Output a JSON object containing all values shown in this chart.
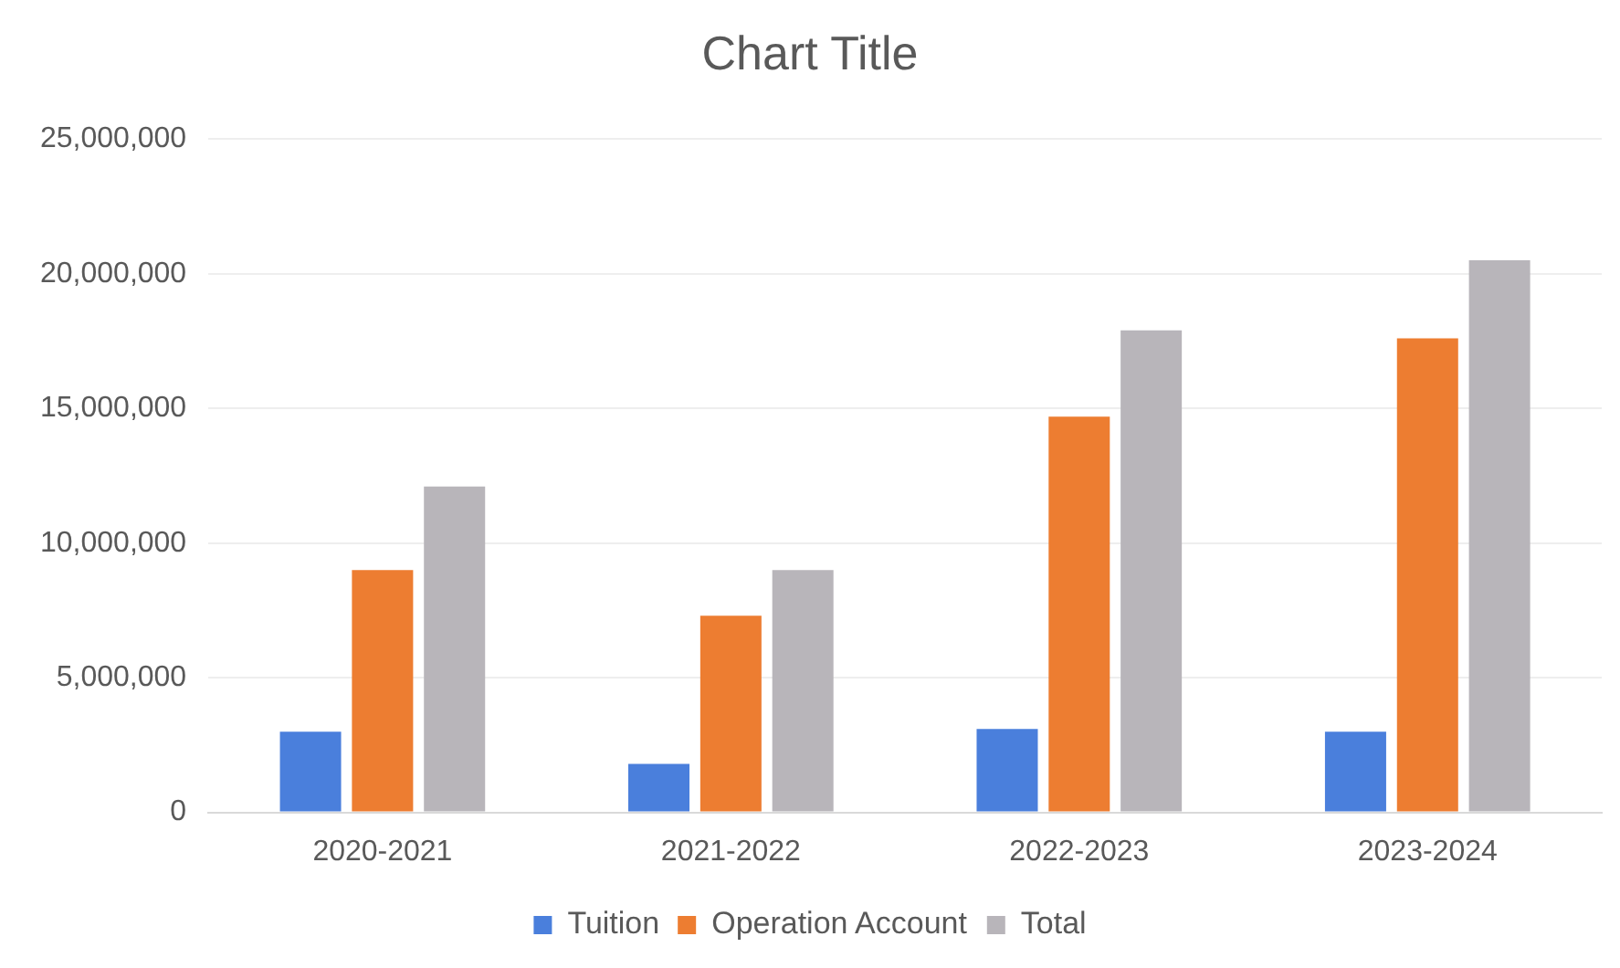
{
  "chart_data": {
    "type": "bar",
    "title": "Chart Title",
    "categories": [
      "2020-2021",
      "2021-2022",
      "2022-2023",
      "2023-2024"
    ],
    "series": [
      {
        "name": "Tuition",
        "color": "#4a7fdc",
        "values": [
          3000000,
          1800000,
          3100000,
          3000000
        ]
      },
      {
        "name": "Operation Account",
        "color": "#ed7d31",
        "values": [
          9000000,
          7300000,
          14700000,
          17600000
        ]
      },
      {
        "name": "Total",
        "color": "#b8b5ba",
        "values": [
          12100000,
          9000000,
          17900000,
          20500000
        ]
      }
    ],
    "ylim": [
      0,
      25000000
    ],
    "yticks": [
      {
        "value": 0,
        "label": "0"
      },
      {
        "value": 5000000,
        "label": "5,000,000"
      },
      {
        "value": 10000000,
        "label": "10,000,000"
      },
      {
        "value": 15000000,
        "label": "15,000,000"
      },
      {
        "value": 20000000,
        "label": "20,000,000"
      },
      {
        "value": 25000000,
        "label": "25,000,000"
      }
    ],
    "grid": "y",
    "legend": "bottom"
  }
}
